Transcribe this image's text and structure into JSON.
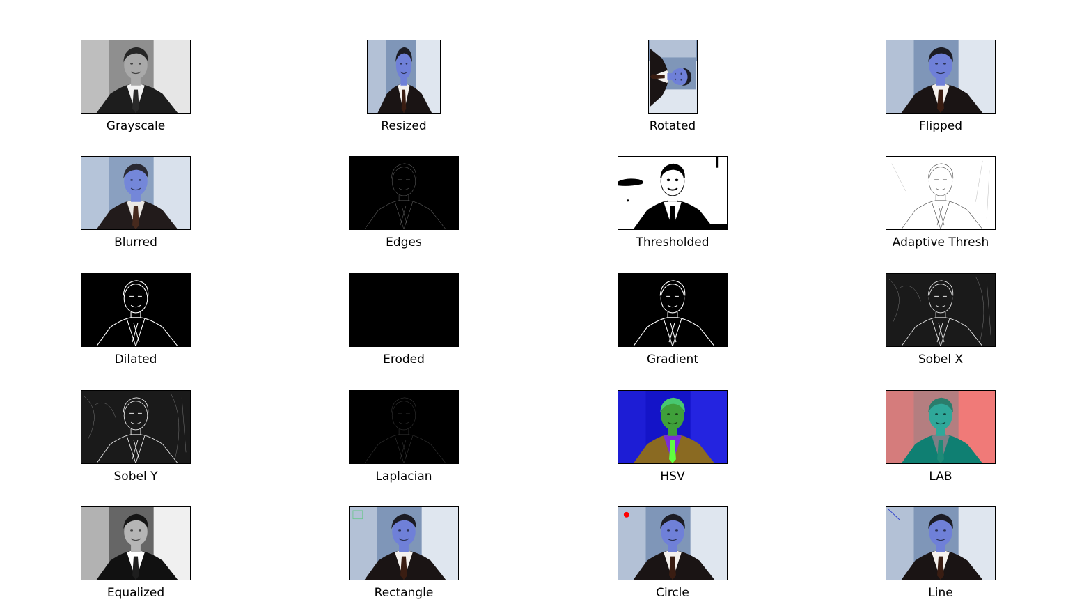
{
  "panels": [
    {
      "title": "Grayscale",
      "style": "gray"
    },
    {
      "title": "Resized",
      "style": "color"
    },
    {
      "title": "Rotated",
      "style": "rotated"
    },
    {
      "title": "Flipped",
      "style": "flipped"
    },
    {
      "title": "Blurred",
      "style": "blur"
    },
    {
      "title": "Edges",
      "style": "edges"
    },
    {
      "title": "Thresholded",
      "style": "thresh"
    },
    {
      "title": "Adaptive Thresh",
      "style": "adaptive"
    },
    {
      "title": "Dilated",
      "style": "dilated"
    },
    {
      "title": "Eroded",
      "style": "black"
    },
    {
      "title": "Gradient",
      "style": "gradient"
    },
    {
      "title": "Sobel X",
      "style": "sobel"
    },
    {
      "title": "Sobel Y",
      "style": "sobel"
    },
    {
      "title": "Laplacian",
      "style": "laplacian"
    },
    {
      "title": "HSV",
      "style": "hsv"
    },
    {
      "title": "LAB",
      "style": "lab"
    },
    {
      "title": "Equalized",
      "style": "equalized"
    },
    {
      "title": "Rectangle",
      "style": "rectangle"
    },
    {
      "title": "Circle",
      "style": "circle"
    },
    {
      "title": "Line",
      "style": "line"
    }
  ],
  "colors": {
    "background": "#ffffff",
    "frame": "#000000",
    "circle_marker": "#ff0000",
    "rectangle_marker": "#33cc55",
    "line_marker": "#3344cc"
  }
}
